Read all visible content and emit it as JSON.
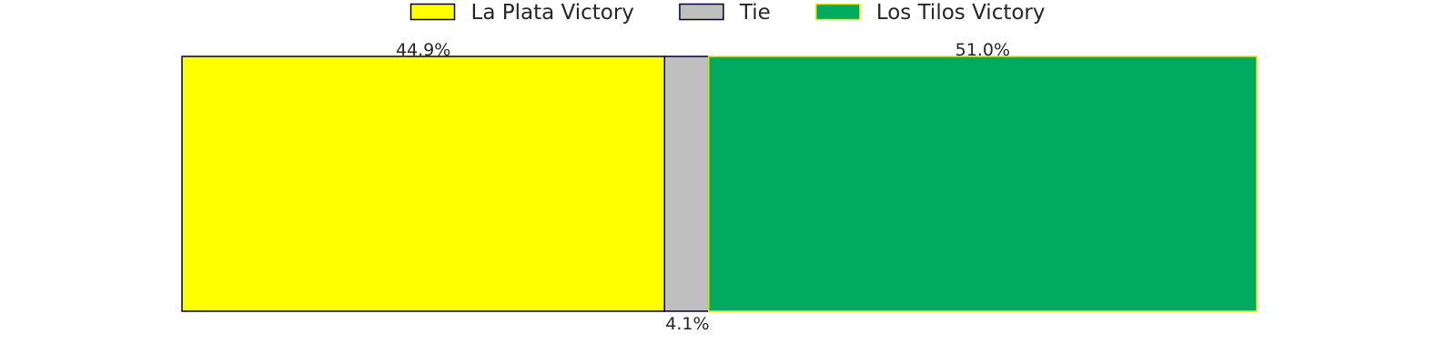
{
  "chart_data": {
    "type": "bar",
    "orientation": "horizontal-stacked",
    "categories": [
      "La Plata Victory",
      "Tie",
      "Los Tilos Victory"
    ],
    "values": [
      44.9,
      4.1,
      51.0
    ],
    "value_labels": [
      "44.9%",
      "4.1%",
      "51.0%"
    ],
    "colors": [
      "#FFFF00",
      "#BFBFBF",
      "#00AA60"
    ],
    "edge_colors": [
      "#000033",
      "#000033",
      "#E6E600"
    ],
    "legend": {
      "position": "top-center",
      "entries": [
        "La Plata Victory",
        "Tie",
        "Los Tilos Victory"
      ]
    },
    "title": "",
    "xlabel": "",
    "ylabel": "",
    "xlim": [
      0,
      100
    ],
    "grid": false,
    "axes_visible": false
  }
}
